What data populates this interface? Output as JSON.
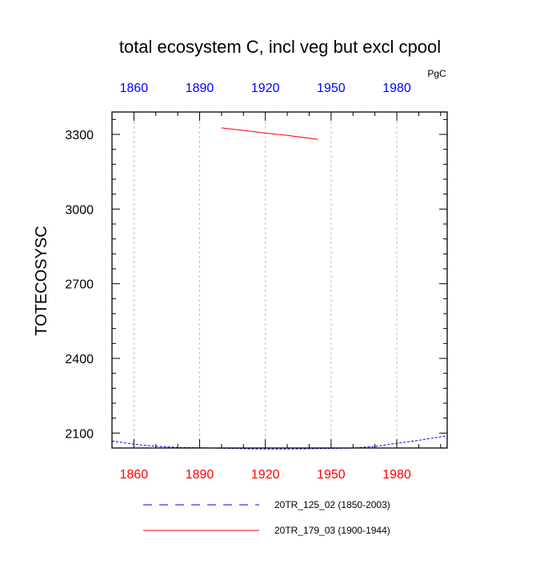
{
  "chart_data": {
    "type": "line",
    "title": "total ecosystem C, incl veg but excl cpool",
    "ylabel": "TOTECOSYSC",
    "units": "PgC",
    "xlabel": "",
    "xlim": [
      1850,
      2003
    ],
    "ylim": [
      2040,
      3390
    ],
    "x_ticks": [
      1860,
      1890,
      1920,
      1950,
      1980
    ],
    "y_ticks": [
      2100,
      2400,
      2700,
      3000,
      3300
    ],
    "x_top_tick_color": "#0000ff",
    "x_bottom_tick_color": "#ff0000",
    "grid": "vertical-dashed",
    "series": [
      {
        "name": "20TR_125_02 (1850-2003)",
        "color": "#0000ff",
        "dash": "dashed",
        "x": [
          1850,
          1860,
          1870,
          1880,
          1890,
          1900,
          1910,
          1920,
          1930,
          1940,
          1950,
          1960,
          1970,
          1980,
          1990,
          2000,
          2003
        ],
        "y": [
          2068,
          2055,
          2047,
          2042,
          2041,
          2039,
          2037,
          2036,
          2036,
          2037,
          2038,
          2040,
          2046,
          2059,
          2071,
          2085,
          2089
        ]
      },
      {
        "name": "20TR_179_03 (1900-1944)",
        "color": "#ff0000",
        "dash": "solid",
        "x": [
          1900,
          1910,
          1920,
          1930,
          1944
        ],
        "y": [
          3326,
          3316,
          3305,
          3296,
          3280
        ]
      }
    ]
  }
}
